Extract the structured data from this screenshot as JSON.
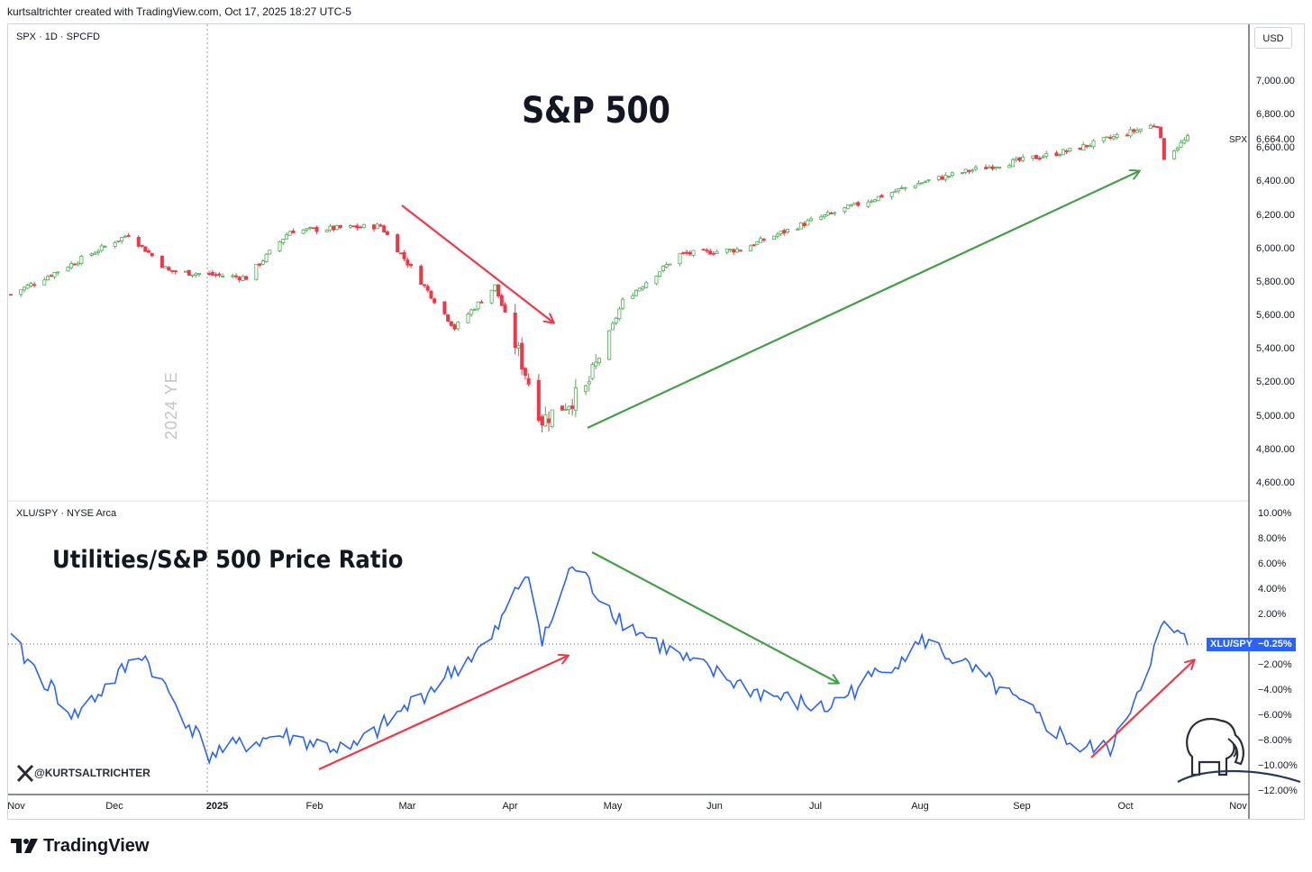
{
  "header": "kurtsaltrichter created with TradingView.com, Oct 17, 2025 18:27 UTC-5",
  "currency": "USD",
  "top_pane": {
    "label": "SPX · 1D · SPCFD",
    "title": "S&P 500",
    "price_label": "SPX",
    "price_value": "6,664.00",
    "yticks": [
      "7,000.00",
      "6,800.00",
      "6,600.00",
      "6,400.00",
      "6,200.00",
      "6,000.00",
      "5,800.00",
      "5,600.00",
      "5,400.00",
      "5,200.00",
      "5,000.00",
      "4,800.00",
      "4,600.00"
    ],
    "year_end_marker": "2024 YE"
  },
  "bottom_pane": {
    "label": "XLU/SPY · NYSE Arca",
    "title": "Utilities/S&P 500 Price Ratio",
    "ratio_label": "XLU/SPY",
    "ratio_value": "−0.25%",
    "yticks": [
      "10.00%",
      "8.00%",
      "6.00%",
      "4.00%",
      "2.00%",
      "−2.00%",
      "−4.00%",
      "−6.00%",
      "−8.00%",
      "−10.00%",
      "−12.00%"
    ]
  },
  "x_axis": [
    "Nov",
    "Dec",
    "2025",
    "Feb",
    "Mar",
    "Apr",
    "May",
    "Jun",
    "Jul",
    "Aug",
    "Sep",
    "Oct",
    "Nov"
  ],
  "watermark_handle": "@KURTSALTRICHTER",
  "brand": "TradingView",
  "colors": {
    "up": "#26a69a",
    "up_alt": "#4caf50",
    "down": "#f23645",
    "ratio_line": "#2962ff",
    "arrow_red": "#f23645",
    "arrow_green": "#43a047"
  },
  "chart_data": [
    {
      "type": "candlestick",
      "title": "S&P 500",
      "series_name": "SPX",
      "ylim": [
        4600,
        7000
      ],
      "x": [
        "2024-11-01",
        "2024-11-15",
        "2024-12-06",
        "2024-12-18",
        "2025-01-10",
        "2025-01-23",
        "2025-02-19",
        "2025-03-13",
        "2025-03-25",
        "2025-04-08",
        "2025-04-21",
        "2025-05-02",
        "2025-05-19",
        "2025-06-06",
        "2025-06-27",
        "2025-07-28",
        "2025-08-13",
        "2025-09-12",
        "2025-10-08",
        "2025-10-10",
        "2025-10-17"
      ],
      "close": [
        5730,
        5870,
        6090,
        5870,
        5830,
        6110,
        6140,
        5530,
        5780,
        4980,
        5160,
        5690,
        5970,
        6000,
        6170,
        6390,
        6470,
        6590,
        6750,
        6550,
        6664
      ]
    },
    {
      "type": "line",
      "title": "Utilities/S&P 500 Price Ratio",
      "series_name": "XLU/SPY",
      "ylabel": "%",
      "ylim": [
        -12,
        10
      ],
      "x": [
        "2024-11-01",
        "2024-11-20",
        "2024-12-10",
        "2024-12-30",
        "2025-01-20",
        "2025-02-10",
        "2025-03-05",
        "2025-03-24",
        "2025-04-04",
        "2025-04-08",
        "2025-04-17",
        "2025-05-02",
        "2025-05-20",
        "2025-06-10",
        "2025-07-01",
        "2025-07-31",
        "2025-08-20",
        "2025-09-15",
        "2025-09-25",
        "2025-10-10",
        "2025-10-17"
      ],
      "values": [
        0,
        -6,
        -1,
        -9,
        -7.5,
        -8.8,
        -4,
        0,
        5.8,
        -0.3,
        6.0,
        1.5,
        -1.5,
        -4.0,
        -5.5,
        0,
        -3.5,
        -8.6,
        -8.5,
        1.2,
        -0.25
      ]
    }
  ]
}
